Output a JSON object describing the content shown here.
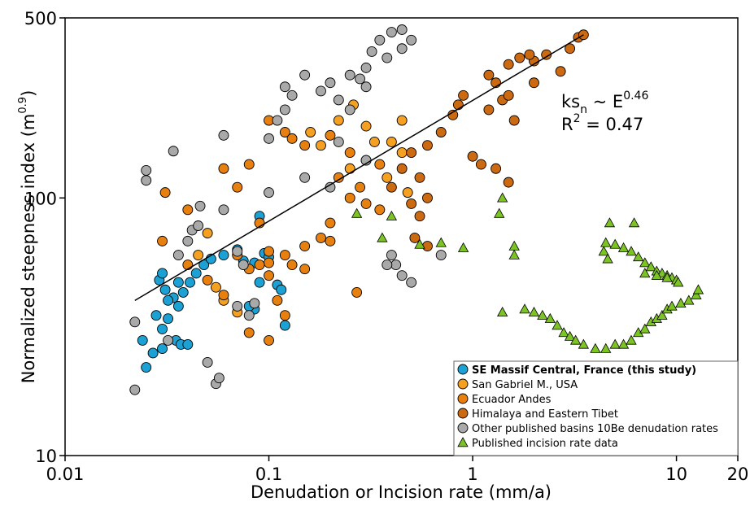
{
  "chart_data": {
    "type": "scatter",
    "x_label": "Denudation or Incision rate (mm/a)",
    "y_label": [
      "Normalized steepness index (m",
      "0.9",
      ")"
    ],
    "annotation": [
      [
        "ks",
        "n",
        " ~ E",
        "0.46"
      ],
      [
        "R",
        "2",
        " = 0.47"
      ]
    ],
    "log_x": true,
    "log_y": true,
    "xlim": [
      0.01,
      20
    ],
    "ylim": [
      10,
      500
    ],
    "xticks": [
      0.01,
      0.1,
      1,
      10,
      20
    ],
    "yticks": [
      10,
      100,
      500
    ],
    "legend": "lower right",
    "fit_line": {
      "x": [
        0.022,
        3.5
      ],
      "y": [
        40,
        430
      ],
      "color": "#000000"
    },
    "series": [
      {
        "name": "SE Massif Central, France (this study)",
        "color": "#1ba1d4",
        "marker": "circle",
        "x": [
          0.025,
          0.024,
          0.027,
          0.03,
          0.03,
          0.032,
          0.028,
          0.029,
          0.031,
          0.034,
          0.036,
          0.035,
          0.037,
          0.04,
          0.038,
          0.041,
          0.044,
          0.048,
          0.052,
          0.06,
          0.07,
          0.075,
          0.085,
          0.09,
          0.095,
          0.1,
          0.11,
          0.115,
          0.09,
          0.085,
          0.08,
          0.12,
          0.03,
          0.036,
          0.032
        ],
        "y": [
          22,
          28,
          25,
          26,
          31,
          34,
          35,
          48,
          44,
          41,
          38,
          28,
          27,
          27,
          43,
          47,
          51,
          55,
          58,
          60,
          63,
          57,
          56,
          85,
          61,
          59,
          46,
          44,
          47,
          37,
          38,
          32,
          51,
          47,
          40
        ]
      },
      {
        "name": "San Gabriel M., USA",
        "color": "#f5a020",
        "marker": "circle",
        "x": [
          0.16,
          0.18,
          0.22,
          0.26,
          0.3,
          0.4,
          0.45,
          0.38,
          0.25,
          0.45,
          0.33,
          0.48,
          0.05,
          0.045,
          0.055,
          0.06,
          0.07
        ],
        "y": [
          180,
          160,
          200,
          230,
          190,
          165,
          150,
          120,
          130,
          200,
          165,
          105,
          73,
          60,
          45,
          40,
          36
        ]
      },
      {
        "name": "Ecuador Andes",
        "color": "#e8800f",
        "marker": "circle",
        "x": [
          0.1,
          0.12,
          0.13,
          0.15,
          0.2,
          0.25,
          0.3,
          0.35,
          0.22,
          0.28,
          0.25,
          0.3,
          0.35,
          0.2,
          0.18,
          0.15,
          0.12,
          0.1,
          0.09,
          0.08,
          0.07,
          0.1,
          0.11,
          0.12,
          0.1,
          0.08,
          0.06,
          0.05,
          0.04,
          0.03,
          0.031,
          0.04,
          0.09,
          0.08,
          0.06,
          0.07,
          0.2,
          0.27,
          0.15,
          0.13,
          0.1
        ],
        "y": [
          200,
          180,
          170,
          160,
          175,
          150,
          140,
          135,
          120,
          110,
          100,
          95,
          90,
          80,
          70,
          65,
          60,
          56,
          55,
          53,
          60,
          50,
          40,
          35,
          28,
          30,
          42,
          48,
          55,
          68,
          105,
          90,
          80,
          135,
          130,
          110,
          68,
          43,
          53,
          55,
          62
        ]
      },
      {
        "name": "Himalaya and Eastern Tibet",
        "color": "#cc6a12",
        "marker": "circle",
        "x": [
          1.5,
          1.7,
          2.0,
          2.3,
          1.9,
          3.0,
          3.3,
          3.5,
          1.2,
          1.3,
          1.4,
          1.5,
          1.2,
          1.6,
          0.8,
          0.85,
          0.9,
          0.7,
          0.6,
          0.5,
          0.45,
          0.4,
          0.55,
          0.6,
          0.5,
          0.55,
          0.52,
          0.6,
          1.0,
          1.1,
          1.3,
          1.5,
          2.7,
          2.0
        ],
        "y": [
          330,
          350,
          340,
          360,
          360,
          380,
          420,
          430,
          300,
          280,
          240,
          250,
          220,
          200,
          210,
          230,
          250,
          180,
          160,
          150,
          130,
          110,
          120,
          100,
          95,
          85,
          70,
          65,
          145,
          135,
          130,
          115,
          310,
          280
        ]
      },
      {
        "name": "Other published basins 10Be denudation rates",
        "color": "#a9a9a9",
        "marker": "circle",
        "x": [
          0.022,
          0.022,
          0.032,
          0.025,
          0.025,
          0.034,
          0.036,
          0.04,
          0.042,
          0.045,
          0.046,
          0.05,
          0.055,
          0.057,
          0.06,
          0.06,
          0.07,
          0.075,
          0.07,
          0.08,
          0.085,
          0.1,
          0.1,
          0.11,
          0.12,
          0.13,
          0.12,
          0.15,
          0.18,
          0.2,
          0.22,
          0.25,
          0.28,
          0.3,
          0.32,
          0.35,
          0.4,
          0.45,
          0.5,
          0.45,
          0.38,
          0.3,
          0.25,
          0.15,
          0.2,
          0.4,
          0.42,
          0.45,
          0.5,
          0.38,
          0.7,
          0.3,
          0.22
        ],
        "y": [
          18,
          33,
          28,
          128,
          117,
          152,
          60,
          68,
          75,
          78,
          93,
          23,
          19,
          20,
          90,
          175,
          62,
          55,
          38,
          35,
          39,
          105,
          170,
          200,
          220,
          250,
          270,
          300,
          260,
          280,
          240,
          300,
          290,
          320,
          370,
          410,
          440,
          450,
          410,
          380,
          350,
          270,
          220,
          120,
          110,
          60,
          55,
          50,
          47,
          55,
          60,
          140,
          165
        ]
      },
      {
        "name": "Published incision rate data",
        "color": "#7cc423",
        "marker": "triangle",
        "x": [
          1.4,
          1.35,
          1.6,
          1.6,
          1.4,
          0.4,
          0.27,
          0.36,
          0.55,
          0.7,
          0.9,
          4.4,
          4.7,
          6.2,
          4.6,
          1.8,
          2.0,
          2.2,
          2.4,
          2.6,
          2.8,
          3.0,
          3.2,
          3.5,
          4.0,
          4.5,
          5.0,
          5.5,
          6.0,
          6.5,
          7.0,
          7.5,
          8.0,
          8.5,
          9.0,
          9.5,
          10.5,
          11.5,
          12.5,
          12.8,
          4.5,
          5.0,
          5.5,
          6.0,
          6.5,
          7.0,
          7.5,
          8.0,
          8.5,
          9.0,
          9.5,
          10.0,
          7.0,
          8.0,
          9.0,
          10.2
        ],
        "y": [
          100,
          87,
          65,
          60,
          36,
          85,
          87,
          70,
          66,
          67,
          64,
          62,
          80,
          80,
          58,
          37,
          36,
          35,
          34,
          32,
          30,
          29,
          28,
          27,
          26,
          26,
          27,
          27,
          28,
          30,
          31,
          33,
          34,
          35,
          37,
          38,
          39,
          40,
          42,
          44,
          67,
          66,
          64,
          62,
          59,
          56,
          54,
          52,
          51,
          50,
          49,
          48,
          51,
          50,
          49,
          47
        ]
      }
    ]
  }
}
